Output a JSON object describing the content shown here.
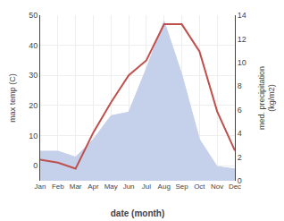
{
  "chart_data": {
    "type": "line",
    "xlabel": "date (month)",
    "ylabel": "max temp (C)",
    "y2label": "med. precipitation\n(kg/m2)",
    "categories": [
      "Jan",
      "Feb",
      "Mar",
      "Apr",
      "May",
      "Jun",
      "Jul",
      "Aug",
      "Sep",
      "Oct",
      "Nov",
      "Dec"
    ],
    "series": [
      {
        "type": "area",
        "axis": "y2",
        "color": "#c5d0ea",
        "values": [
          2.5,
          2.5,
          2.0,
          3.5,
          5.5,
          5.8,
          9.5,
          13.5,
          9.0,
          3.5,
          1.2,
          1.0
        ]
      },
      {
        "type": "line",
        "color": "#c0504d",
        "values": [
          2.0,
          1.0,
          -1.0,
          11.0,
          21.0,
          30.0,
          35.0,
          47.0,
          47.0,
          38.0,
          18.0,
          5.0
        ]
      }
    ],
    "ylim": [
      -5,
      50
    ],
    "yticks": [
      0,
      10,
      20,
      30,
      40,
      50
    ],
    "y2lim": [
      0,
      14
    ],
    "y2ticks": [
      0,
      2,
      4,
      6,
      8,
      10,
      12,
      14
    ],
    "grid": true
  }
}
